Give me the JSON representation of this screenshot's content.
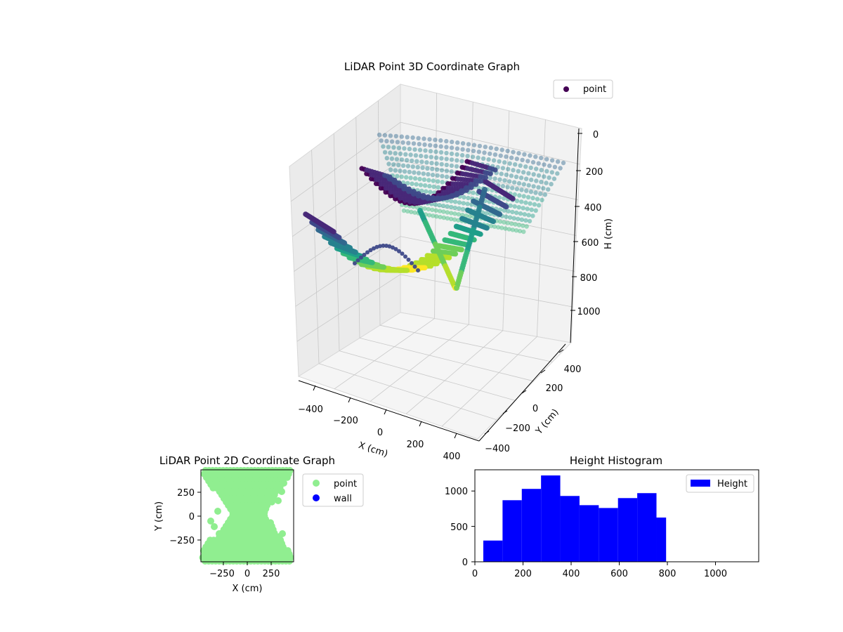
{
  "chart_data": [
    {
      "type": "scatter3d",
      "title": "LiDAR Point 3D Coordinate Graph",
      "xlabel": "X (cm)",
      "ylabel": "Y (cm)",
      "zlabel": "H (cm)",
      "xlim": [
        -450,
        450
      ],
      "ylim": [
        -450,
        450
      ],
      "zlim": [
        1100,
        0
      ],
      "x_ticks": [
        "−400",
        "−200",
        "0",
        "200",
        "400"
      ],
      "y_ticks": [
        "−400",
        "−200",
        "0",
        "200",
        "400"
      ],
      "z_ticks": [
        "0",
        "200",
        "400",
        "600",
        "800",
        "1000"
      ],
      "legend": {
        "label": "point",
        "placement": "top-right",
        "color": "#440154"
      },
      "colormap": "viridis",
      "grid": true
    },
    {
      "type": "scatter",
      "title": "LiDAR Point 2D Coordinate Graph",
      "xlabel": "X (cm)",
      "ylabel": "Y (cm)",
      "xlim": [
        -450,
        450
      ],
      "ylim": [
        -450,
        450
      ],
      "x_ticks": [
        "−250",
        "0",
        "250"
      ],
      "y_ticks": [
        "250",
        "0",
        "−250"
      ],
      "series": [
        {
          "name": "point",
          "color": "#90ee90"
        },
        {
          "name": "wall",
          "color": "#0000ff"
        }
      ],
      "legend_placement": "outside-right"
    },
    {
      "type": "bar",
      "title": "Height Histogram",
      "xlabel": "",
      "ylabel": "",
      "xlim": [
        0,
        1180
      ],
      "ylim": [
        0,
        1300
      ],
      "x_ticks": [
        "0",
        "200",
        "400",
        "600",
        "800",
        "1000"
      ],
      "y_ticks": [
        "0",
        "500",
        "1000"
      ],
      "bin_edges": [
        35,
        115,
        195,
        275,
        355,
        435,
        515,
        595,
        675,
        755,
        795
      ],
      "values": [
        300,
        870,
        1030,
        1220,
        930,
        800,
        760,
        900,
        970,
        625
      ],
      "series": [
        {
          "name": "Height",
          "color": "#0000ff"
        }
      ],
      "legend_placement": "top-right"
    }
  ]
}
